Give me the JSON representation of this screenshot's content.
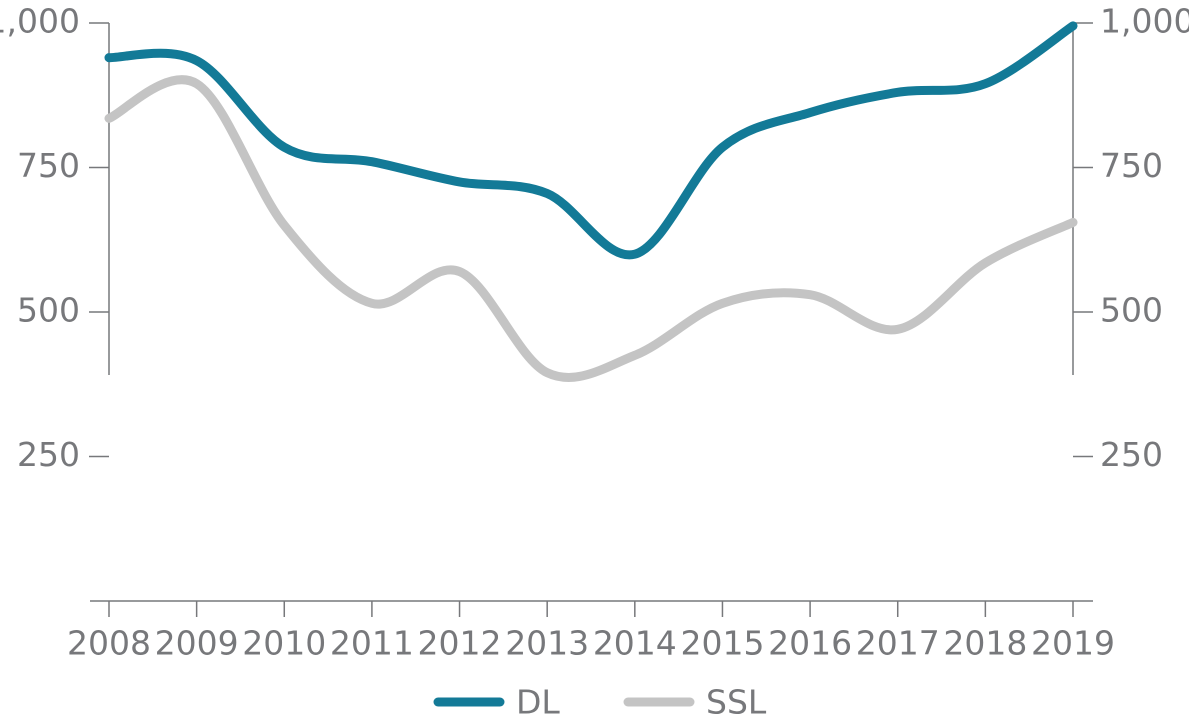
{
  "chart_data": {
    "type": "line",
    "categories": [
      "2008",
      "2009",
      "2010",
      "2011",
      "2012",
      "2013",
      "2014",
      "2015",
      "2016",
      "2017",
      "2018",
      "2019"
    ],
    "series": [
      {
        "name": "DL",
        "color": "#137a97",
        "values": [
          940,
          935,
          785,
          760,
          725,
          705,
          600,
          785,
          845,
          880,
          895,
          995
        ]
      },
      {
        "name": "SSL",
        "color": "#c4c4c4",
        "values": [
          835,
          895,
          650,
          515,
          570,
          395,
          425,
          515,
          530,
          470,
          585,
          655
        ]
      }
    ],
    "ylim": [
      0,
      1000
    ],
    "yticks": [
      250,
      500,
      750,
      {
        "value": 1000,
        "label": "1,000"
      }
    ],
    "legend": "bottom"
  }
}
